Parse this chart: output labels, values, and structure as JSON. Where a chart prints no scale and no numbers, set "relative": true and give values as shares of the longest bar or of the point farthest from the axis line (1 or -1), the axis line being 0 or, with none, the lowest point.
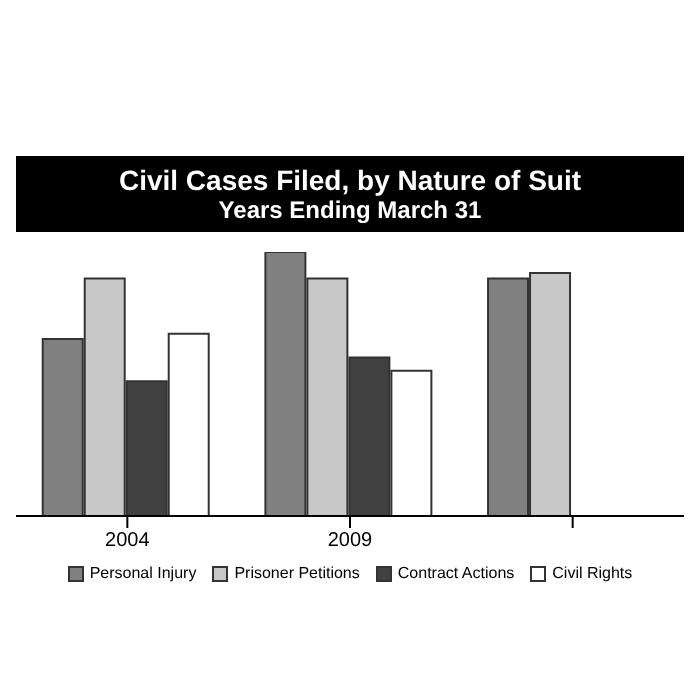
{
  "chart_data": {
    "type": "bar",
    "title": "Civil Cases Filed, by Nature of Suit",
    "subtitle": "Years Ending March 31",
    "categories": [
      "2004",
      "2009",
      null
    ],
    "relative": true,
    "series": [
      {
        "name": "Personal Injury",
        "color": "#808080",
        "values": [
          0.67,
          1,
          0.9
        ]
      },
      {
        "name": "Prisoner Petitions",
        "color": "#c8c8c8",
        "values": [
          0.9,
          0.9,
          0.92
        ]
      },
      {
        "name": "Contract Actions",
        "color": "#404040",
        "values": [
          0.51,
          0.6,
          null
        ]
      },
      {
        "name": "Civil Rights",
        "color": "#ffffff",
        "values": [
          0.69,
          0.55,
          null
        ]
      }
    ],
    "grid": false,
    "legend": "bottom"
  }
}
